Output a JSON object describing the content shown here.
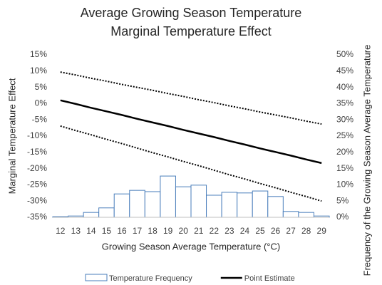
{
  "chart_data": {
    "type": "bar-line",
    "title": "Average Growing Season Temperature",
    "subtitle": "Marginal Temperature Effect",
    "x_label": "Growing Season Average Temperature (°C)",
    "y_label": "Marginal Temperature Effect",
    "y2_label": "Frequency of the Growing Season Average Temperature",
    "categories": [
      "12",
      "13",
      "14",
      "15",
      "16",
      "17",
      "18",
      "19",
      "20",
      "21",
      "22",
      "23",
      "24",
      "25",
      "26",
      "27",
      "28",
      "29"
    ],
    "ylim": [
      -35,
      15
    ],
    "yticks": [
      {
        "value": -35,
        "label": "-35%"
      },
      {
        "value": -30,
        "label": "-30%"
      },
      {
        "value": -25,
        "label": "-25%"
      },
      {
        "value": -20,
        "label": "-20%"
      },
      {
        "value": -15,
        "label": "-15%"
      },
      {
        "value": -10,
        "label": "-10%"
      },
      {
        "value": -5,
        "label": "-5%"
      },
      {
        "value": 0,
        "label": "0%"
      },
      {
        "value": 5,
        "label": "5%"
      },
      {
        "value": 10,
        "label": "10%"
      },
      {
        "value": 15,
        "label": "15%"
      }
    ],
    "y2lim": [
      0,
      50
    ],
    "y2ticks": [
      {
        "value": 0,
        "label": "0%"
      },
      {
        "value": 5,
        "label": "5%"
      },
      {
        "value": 10,
        "label": "10%"
      },
      {
        "value": 15,
        "label": "15%"
      },
      {
        "value": 20,
        "label": "20%"
      },
      {
        "value": 25,
        "label": "25%"
      },
      {
        "value": 30,
        "label": "30%"
      },
      {
        "value": 35,
        "label": "35%"
      },
      {
        "value": 40,
        "label": "40%"
      },
      {
        "value": 45,
        "label": "45%"
      },
      {
        "value": 50,
        "label": "50%"
      }
    ],
    "series": [
      {
        "name": "Temperature Frequency",
        "kind": "bar",
        "axis": "y2",
        "color": "#4a7ebb",
        "values": [
          0.2,
          0.4,
          1.5,
          2.9,
          7.2,
          8.3,
          7.9,
          12.7,
          9.4,
          9.9,
          6.8,
          7.7,
          7.5,
          8.1,
          6.4,
          1.8,
          1.5,
          0.4
        ]
      },
      {
        "name": "Point Estimate",
        "kind": "line",
        "color": "#000000",
        "values": [
          1.0,
          -0.1,
          -1.3,
          -2.4,
          -3.5,
          -4.7,
          -5.8,
          -6.9,
          -8.1,
          -9.2,
          -10.3,
          -11.5,
          -12.6,
          -13.8,
          -14.9,
          -16.0,
          -17.2,
          -18.3
        ]
      },
      {
        "kind": "dotted",
        "color": "#000000",
        "values": [
          9.7,
          8.8,
          7.8,
          6.9,
          5.9,
          5.0,
          4.1,
          3.1,
          2.2,
          1.2,
          0.3,
          -0.7,
          -1.6,
          -2.6,
          -3.5,
          -4.4,
          -5.4,
          -6.3
        ]
      },
      {
        "kind": "dotted",
        "color": "#000000",
        "values": [
          -6.9,
          -8.3,
          -9.6,
          -11.0,
          -12.3,
          -13.7,
          -15.1,
          -16.4,
          -17.8,
          -19.1,
          -20.5,
          -21.9,
          -23.2,
          -24.6,
          -25.9,
          -27.3,
          -28.6,
          -30.0
        ]
      }
    ]
  }
}
